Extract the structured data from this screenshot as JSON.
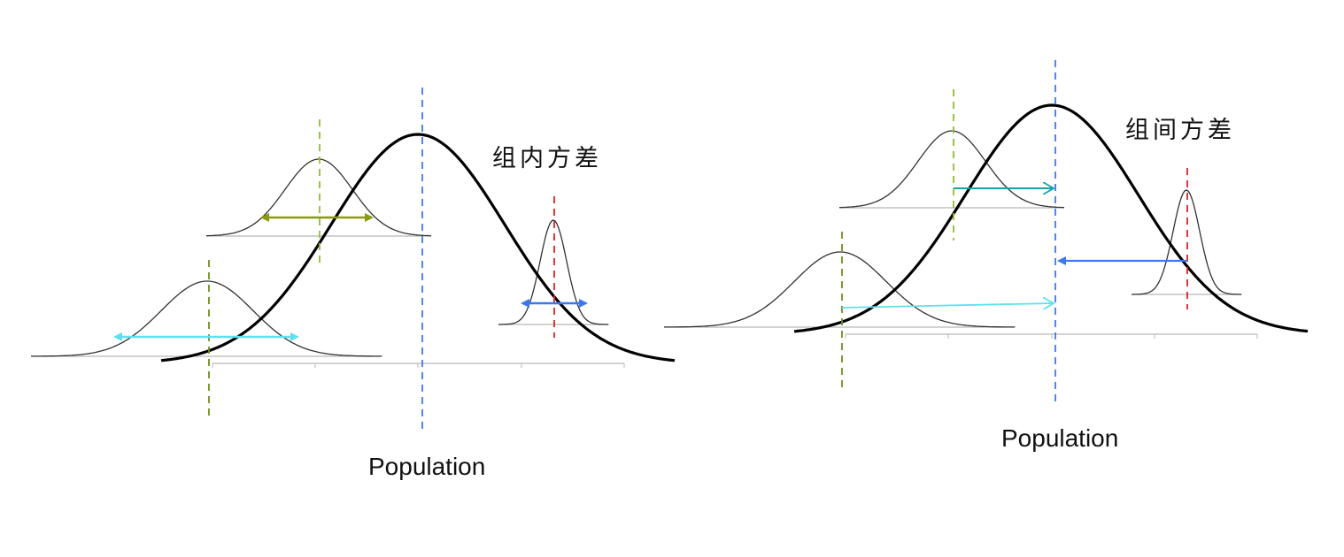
{
  "panels": [
    {
      "caption": "Population",
      "title": "组内方差",
      "colors": {
        "population_mean": "#3a78f2",
        "group1": "#6b8e23",
        "group2": "#8fbc3a",
        "group3": "#e02020",
        "arrow_g1": "#5fe0f0",
        "arrow_g2": "#8a9a10",
        "arrow_g3": "#3a78f2"
      }
    },
    {
      "caption": "Population",
      "title": "组间方差",
      "colors": {
        "population_mean": "#3a78f2",
        "group1": "#6b8e23",
        "group2": "#8fbc3a",
        "group3": "#e02020",
        "arrow_g1": "#5fe0f0",
        "arrow_g2": "#1aa0a8",
        "arrow_g3": "#3a78f2"
      }
    }
  ]
}
